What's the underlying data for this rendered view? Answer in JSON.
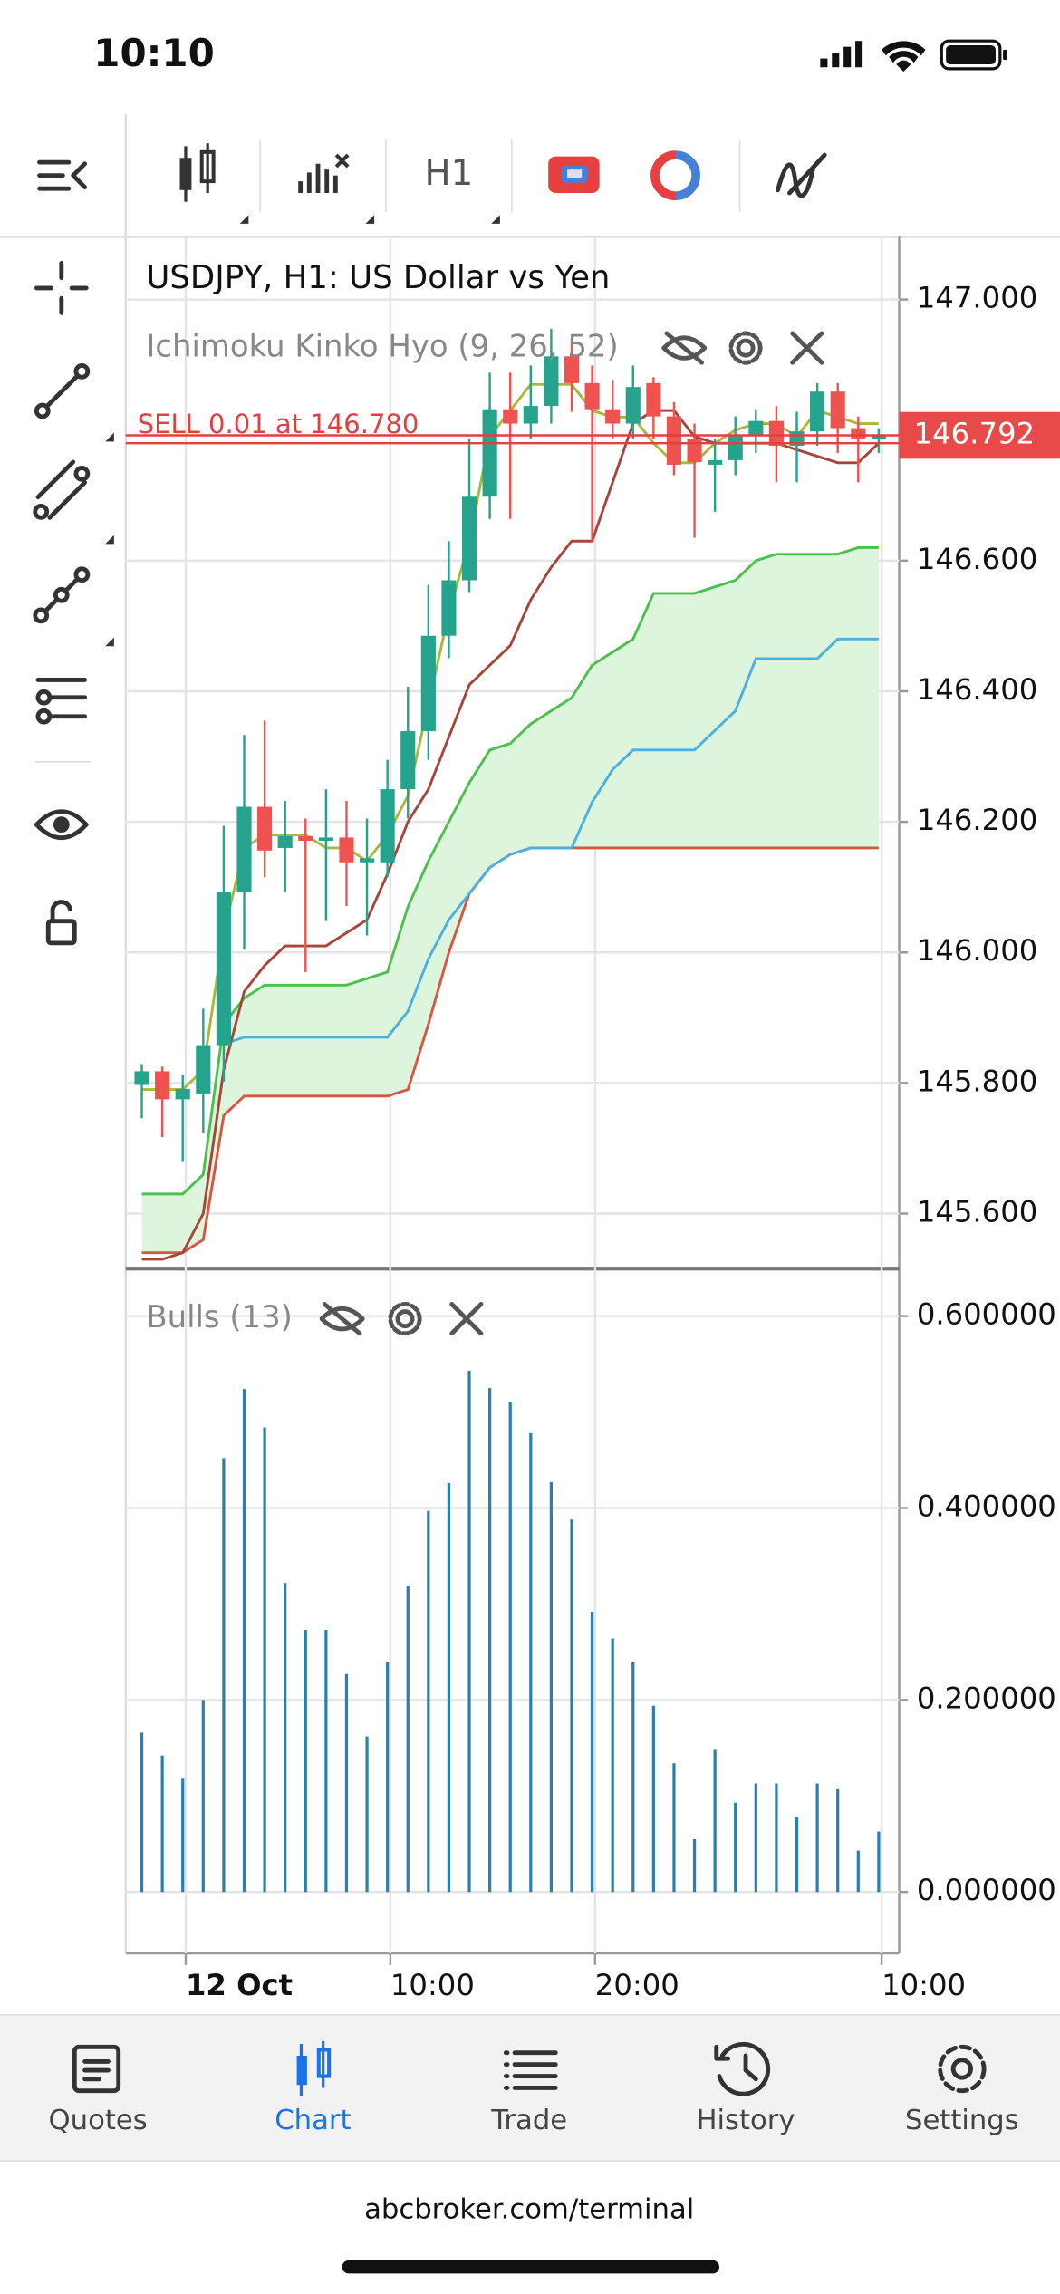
{
  "status_bar": {
    "time": "10:10"
  },
  "toolbar": {
    "timeframe": "H1"
  },
  "chart_data": [
    {
      "type": "candlestick",
      "title": "USDJPY, H1: US Dollar vs Yen",
      "indicator": "Ichimoku Kinko Hyo (9, 26, 52)",
      "categories": [
        null,
        null,
        "12 Oct",
        null,
        null,
        null,
        null,
        null,
        null,
        null,
        null,
        null,
        "10:00",
        null,
        null,
        null,
        null,
        null,
        null,
        null,
        null,
        null,
        "20:00",
        null,
        null,
        null,
        null,
        null,
        null,
        null,
        null,
        null,
        null,
        null,
        null,
        null,
        "10:00"
      ],
      "open": [
        145.797,
        145.818,
        145.775,
        145.784,
        145.858,
        146.093,
        146.223,
        146.16,
        146.178,
        146.171,
        146.176,
        146.138,
        146.138,
        146.25,
        146.339,
        146.485,
        146.57,
        146.698,
        146.832,
        146.81,
        146.837,
        146.913,
        146.872,
        146.832,
        146.81,
        146.872,
        146.821,
        146.787,
        146.747,
        146.754,
        146.792,
        146.814,
        146.776,
        146.798,
        146.859,
        146.803,
        146.787
      ],
      "high": [
        145.829,
        145.825,
        145.813,
        145.914,
        146.194,
        146.333,
        146.355,
        146.232,
        146.205,
        146.25,
        146.232,
        146.205,
        146.295,
        146.407,
        146.563,
        146.63,
        146.787,
        146.888,
        146.888,
        146.899,
        146.955,
        146.94,
        146.899,
        146.877,
        146.899,
        146.881,
        146.843,
        146.81,
        146.787,
        146.821,
        146.832,
        146.837,
        146.828,
        146.872,
        146.872,
        146.821,
        146.803
      ],
      "low": [
        145.746,
        145.717,
        145.679,
        145.724,
        145.802,
        146.004,
        146.115,
        146.093,
        145.97,
        146.048,
        146.071,
        146.026,
        146.115,
        146.205,
        146.295,
        146.451,
        146.552,
        146.664,
        146.664,
        146.787,
        146.81,
        146.828,
        146.63,
        146.787,
        146.787,
        146.787,
        146.731,
        146.635,
        146.675,
        146.731,
        146.765,
        146.72,
        146.72,
        146.776,
        146.765,
        146.72,
        146.765
      ],
      "close": [
        145.818,
        145.775,
        145.791,
        145.858,
        146.093,
        146.223,
        146.156,
        146.178,
        146.171,
        146.176,
        146.138,
        146.144,
        146.25,
        146.339,
        146.485,
        146.57,
        146.698,
        146.832,
        146.81,
        146.837,
        146.913,
        146.872,
        146.832,
        146.81,
        146.866,
        146.821,
        146.747,
        146.751,
        146.754,
        146.792,
        146.814,
        146.776,
        146.798,
        146.859,
        146.803,
        146.787,
        146.792
      ],
      "up_color": "#26a38c",
      "down_color": "#ef5350",
      "cloud_color": "#dcf5dc",
      "series": [
        {
          "color": "#4cc04c",
          "values": [
            145.63,
            145.63,
            145.63,
            145.66,
            145.89,
            145.93,
            145.95,
            145.95,
            145.95,
            145.95,
            145.95,
            145.96,
            145.97,
            146.07,
            146.14,
            146.2,
            146.26,
            146.31,
            146.32,
            146.35,
            146.37,
            146.39,
            146.44,
            146.46,
            146.48,
            146.55,
            146.55,
            146.55,
            146.56,
            146.57,
            146.6,
            146.61,
            146.61,
            146.61,
            146.61,
            146.62,
            146.62
          ]
        },
        {
          "color": "#d9553f",
          "values": [
            145.54,
            145.54,
            145.54,
            145.56,
            145.75,
            145.78,
            145.78,
            145.78,
            145.78,
            145.78,
            145.78,
            145.78,
            145.78,
            145.79,
            145.89,
            146.0,
            146.09,
            146.13,
            146.15,
            146.16,
            146.16,
            146.16,
            146.16,
            146.16,
            146.16,
            146.16,
            146.16,
            146.16,
            146.16,
            146.16,
            146.16,
            146.16,
            146.16,
            146.16,
            146.16,
            146.16,
            146.16
          ]
        },
        {
          "color": "#4fb0e0",
          "values": [
            null,
            null,
            null,
            null,
            145.86,
            145.87,
            145.87,
            145.87,
            145.87,
            145.87,
            145.87,
            145.87,
            145.87,
            145.91,
            145.99,
            146.05,
            146.09,
            146.13,
            146.15,
            146.16,
            146.16,
            146.16,
            146.23,
            146.28,
            146.31,
            146.31,
            146.31,
            146.31,
            146.34,
            146.37,
            146.45,
            146.45,
            146.45,
            146.45,
            146.48,
            146.48,
            146.48
          ]
        },
        {
          "color": "#a8453a",
          "values": [
            145.53,
            145.53,
            145.54,
            145.6,
            145.82,
            145.94,
            145.98,
            146.01,
            146.01,
            146.01,
            146.03,
            146.05,
            146.12,
            146.2,
            146.25,
            146.33,
            146.41,
            146.44,
            146.47,
            146.54,
            146.59,
            146.63,
            146.63,
            146.72,
            146.81,
            146.83,
            146.83,
            146.79,
            146.78,
            146.78,
            146.78,
            146.78,
            146.77,
            146.76,
            146.75,
            146.75,
            146.78
          ]
        },
        {
          "color": "#a8b83a",
          "values": [
            145.79,
            145.79,
            145.79,
            145.82,
            146.03,
            146.16,
            146.18,
            146.18,
            146.18,
            146.16,
            146.16,
            146.14,
            146.18,
            146.24,
            146.38,
            146.52,
            146.63,
            146.79,
            146.83,
            146.87,
            146.87,
            146.87,
            146.83,
            146.82,
            146.82,
            146.78,
            146.75,
            146.75,
            146.78,
            146.8,
            146.81,
            146.81,
            146.79,
            146.83,
            146.82,
            146.81,
            146.81
          ]
        }
      ],
      "current_price": 146.792,
      "order": {
        "label": "SELL 0.01 at 146.780",
        "price": 146.78
      },
      "ylim": [
        145.515,
        147.096
      ],
      "yticks": [
        {
          "value": 147,
          "label": "147.000"
        },
        {
          "value": 146.6,
          "label": "146.600"
        },
        {
          "value": 146.4,
          "label": "146.400"
        },
        {
          "value": 146.2,
          "label": "146.200"
        },
        {
          "value": 146,
          "label": "146.000"
        },
        {
          "value": 145.8,
          "label": "145.800"
        },
        {
          "value": 145.6,
          "label": "145.600"
        }
      ],
      "grid": true
    },
    {
      "type": "bar",
      "title": "Bulls (13)",
      "values": [
        0.166,
        0.142,
        0.118,
        0.2,
        0.452,
        0.524,
        0.484,
        0.322,
        0.273,
        0.273,
        0.227,
        0.162,
        0.24,
        0.319,
        0.397,
        0.426,
        0.543,
        0.525,
        0.51,
        0.478,
        0.427,
        0.388,
        0.292,
        0.264,
        0.24,
        0.194,
        0.134,
        0.055,
        0.148,
        0.093,
        0.113,
        0.113,
        0.078,
        0.113,
        0.107,
        0.043,
        0.063
      ],
      "color": "#2a7fb0",
      "ylim": [
        -0.064,
        0.649
      ],
      "yticks": [
        {
          "value": 0.6,
          "label": "0.600000"
        },
        {
          "value": 0.4,
          "label": "0.400000"
        },
        {
          "value": 0.2,
          "label": "0.200000"
        },
        {
          "value": 0,
          "label": "0.000000"
        }
      ],
      "grid": true
    }
  ],
  "nav": {
    "items": [
      "Quotes",
      "Chart",
      "Trade",
      "History",
      "Settings"
    ]
  },
  "footer": {
    "url": "abcbroker.com/terminal"
  }
}
